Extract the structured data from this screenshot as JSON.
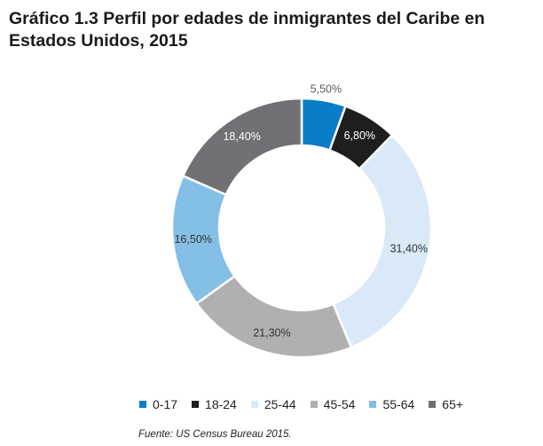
{
  "chart_data": {
    "type": "pie",
    "variant": "donut",
    "title_lines": [
      "Gráfico 1.3 Perfil por edades de inmigrantes del Caribe en",
      "Estados Unidos, 2015"
    ],
    "categories": [
      "0-17",
      "18-24",
      "25-44",
      "45-54",
      "55-64",
      "65+"
    ],
    "values": [
      5.5,
      6.8,
      31.4,
      21.3,
      16.5,
      18.4
    ],
    "labels": [
      "5,50%",
      "6,80%",
      "31,40%",
      "21,30%",
      "16,50%",
      "18,40%"
    ],
    "colors": [
      "#0a7dc8",
      "#1e1e1e",
      "#d9e9f7",
      "#b0b0b2",
      "#84bfe6",
      "#707075"
    ],
    "legend_position": "bottom",
    "source": "Fuente: US Census Bureau 2015."
  }
}
